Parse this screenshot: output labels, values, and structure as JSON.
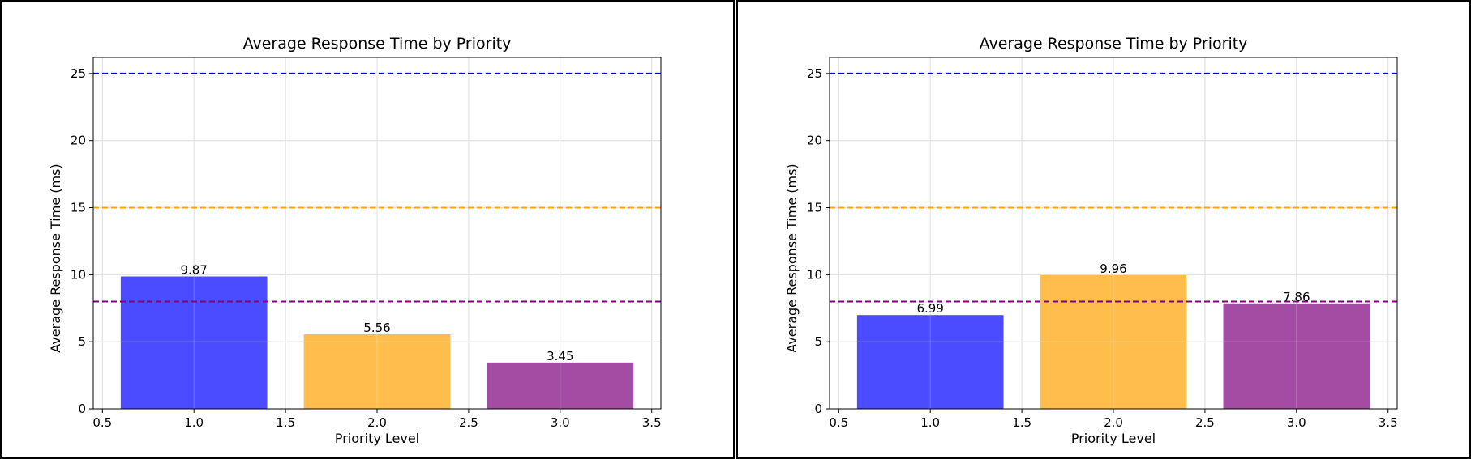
{
  "chart_data": [
    {
      "type": "bar",
      "title": "Average Response Time by Priority",
      "xlabel": "Priority Level",
      "ylabel": "Average Response Time (ms)",
      "x": [
        1.0,
        2.0,
        3.0
      ],
      "values": [
        9.87,
        5.56,
        3.45
      ],
      "value_labels": [
        "9.87",
        "5.56",
        "3.45"
      ],
      "bar_colors": [
        "#4b4bff",
        "#ffbe4b",
        "#a44ca4"
      ],
      "xlim": [
        0.45,
        3.55
      ],
      "ylim": [
        0,
        26.2
      ],
      "xticks": [
        "0.5",
        "1.0",
        "1.5",
        "2.0",
        "2.5",
        "3.0",
        "3.5"
      ],
      "yticks": [
        "0",
        "5",
        "10",
        "15",
        "20",
        "25"
      ],
      "reference_lines": [
        {
          "y": 25,
          "color": "#0000cc"
        },
        {
          "y": 15,
          "color": "#ffa500"
        },
        {
          "y": 8,
          "color": "#800080"
        }
      ],
      "grid": true
    },
    {
      "type": "bar",
      "title": "Average Response Time by Priority",
      "xlabel": "Priority Level",
      "ylabel": "Average Response Time (ms)",
      "x": [
        1.0,
        2.0,
        3.0
      ],
      "values": [
        6.99,
        9.96,
        7.86
      ],
      "value_labels": [
        "6.99",
        "9.96",
        "7.86"
      ],
      "bar_colors": [
        "#4b4bff",
        "#ffbe4b",
        "#a44ca4"
      ],
      "xlim": [
        0.45,
        3.55
      ],
      "ylim": [
        0,
        26.2
      ],
      "xticks": [
        "0.5",
        "1.0",
        "1.5",
        "2.0",
        "2.5",
        "3.0",
        "3.5"
      ],
      "yticks": [
        "0",
        "5",
        "10",
        "15",
        "20",
        "25"
      ],
      "reference_lines": [
        {
          "y": 25,
          "color": "#0000cc"
        },
        {
          "y": 15,
          "color": "#ffa500"
        },
        {
          "y": 8,
          "color": "#800080"
        }
      ],
      "grid": true
    }
  ]
}
